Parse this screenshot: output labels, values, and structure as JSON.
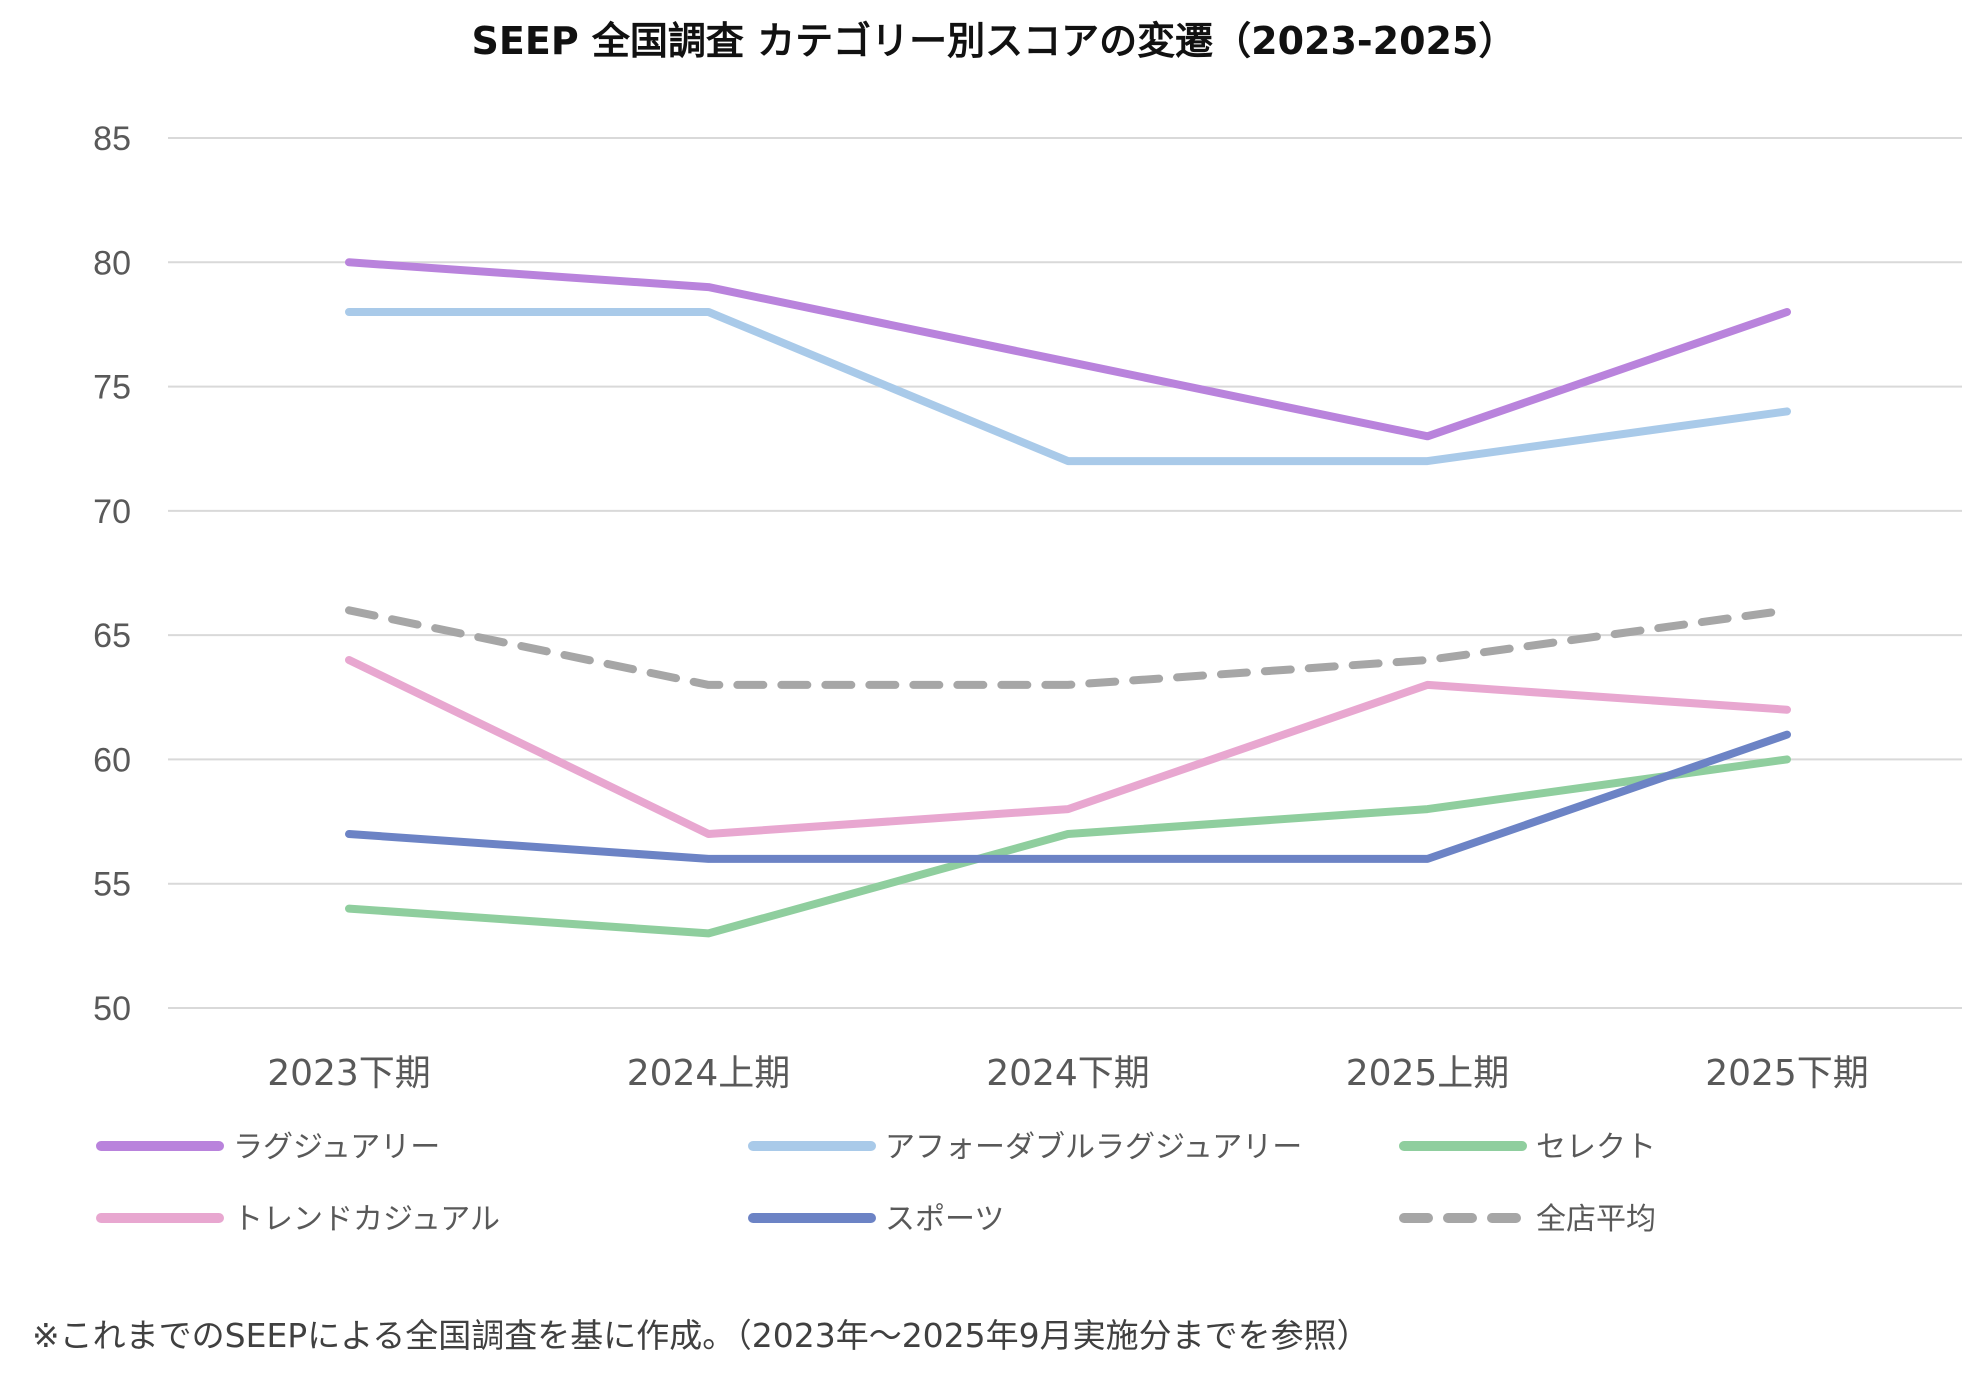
{
  "chart_data": {
    "type": "line",
    "title": "SEEP 全国調査 カテゴリー別スコアの変遷（2023-2025）",
    "xlabel": "",
    "ylabel": "",
    "ylim": [
      50,
      85
    ],
    "yticks": [
      "50",
      "55",
      "60",
      "65",
      "70",
      "75",
      "80",
      "85"
    ],
    "categories": [
      "2023下期",
      "2024上期",
      "2024下期",
      "2025上期",
      "2025下期"
    ],
    "grid": "horizontal",
    "legend_position": "bottom",
    "series": [
      {
        "name": "ラグジュアリー",
        "values": [
          80,
          79,
          76,
          73,
          78
        ],
        "color": "#B983DC",
        "dash": "solid"
      },
      {
        "name": "アフォーダブルラグジュアリー",
        "values": [
          78,
          78,
          72,
          72,
          74
        ],
        "color": "#A9CAE9",
        "dash": "solid"
      },
      {
        "name": "セレクト",
        "values": [
          54,
          53,
          57,
          58,
          60
        ],
        "color": "#8FCE9E",
        "dash": "solid"
      },
      {
        "name": "トレンドカジュアル",
        "values": [
          64,
          57,
          58,
          63,
          62
        ],
        "color": "#E8A7D0",
        "dash": "solid"
      },
      {
        "name": "スポーツ",
        "values": [
          57,
          56,
          56,
          56,
          61
        ],
        "color": "#6C83C5",
        "dash": "solid"
      },
      {
        "name": "全店平均",
        "values": [
          66,
          63,
          63,
          64,
          66
        ],
        "color": "#A6A6A6",
        "dash": "dashed"
      }
    ]
  },
  "footnote": "※これまでのSEEPによる全国調査を基に作成。（2023年～2025年9月実施分までを参照）"
}
